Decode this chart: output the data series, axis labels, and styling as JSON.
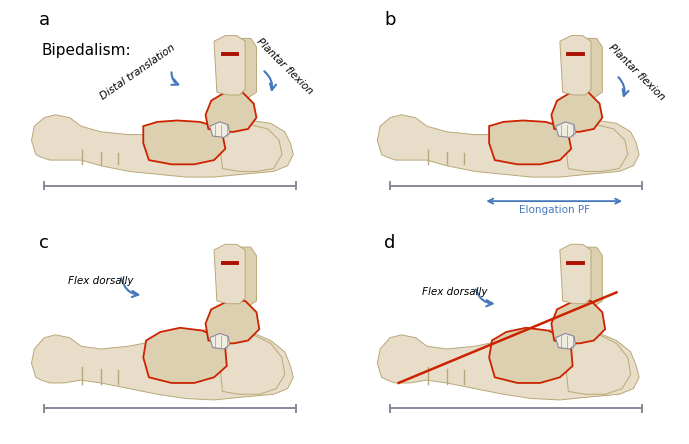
{
  "bg_color": "#ffffff",
  "bone_fill": "#e8ddc8",
  "bone_fill2": "#ddd0b0",
  "bone_edge": "#b8a878",
  "red_outline": "#cc2200",
  "arrow_red": "#aa1100",
  "arrow_blue": "#4477bb",
  "line_gray": "#888899",
  "white_bone": "#f0ede0",
  "panel_labels": [
    "a",
    "b",
    "c",
    "d"
  ],
  "label_a_extra": "Bipedalism:",
  "label_fontsize": 13,
  "annot_fontsize": 7.5,
  "bipedalism_fontsize": 11
}
